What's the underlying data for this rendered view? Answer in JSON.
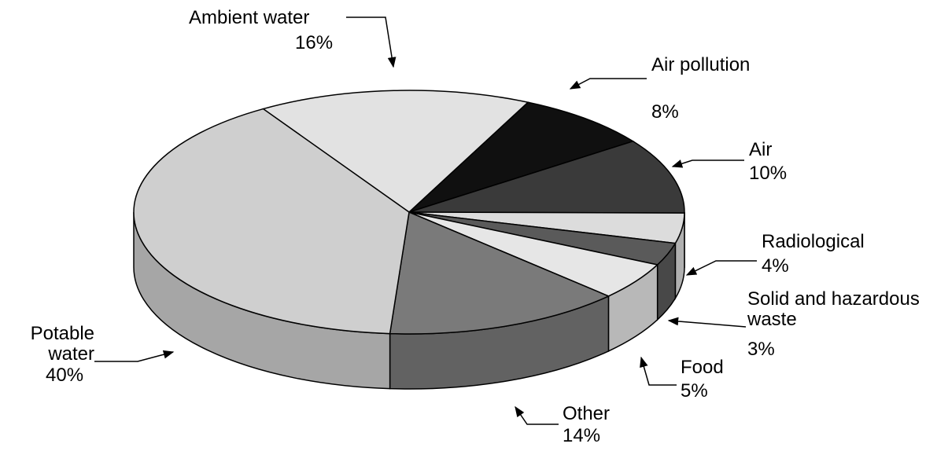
{
  "chart_data": {
    "type": "pie3d",
    "categories": [
      "Ambient water",
      "Air pollution",
      "Air",
      "Radiological",
      "Solid and hazardous waste",
      "Food",
      "Other",
      "Potable water"
    ],
    "values": [
      16,
      8,
      10,
      4,
      3,
      5,
      14,
      40
    ],
    "value_labels": [
      "16%",
      "8%",
      "10%",
      "4%",
      "3%",
      "5%",
      "14%",
      "40%"
    ],
    "colors": [
      "#e2e2e2",
      "#101010",
      "#3a3a3a",
      "#dcdcdc",
      "#5a5a5a",
      "#e6e6e6",
      "#7a7a7a",
      "#cfcfcf"
    ]
  }
}
